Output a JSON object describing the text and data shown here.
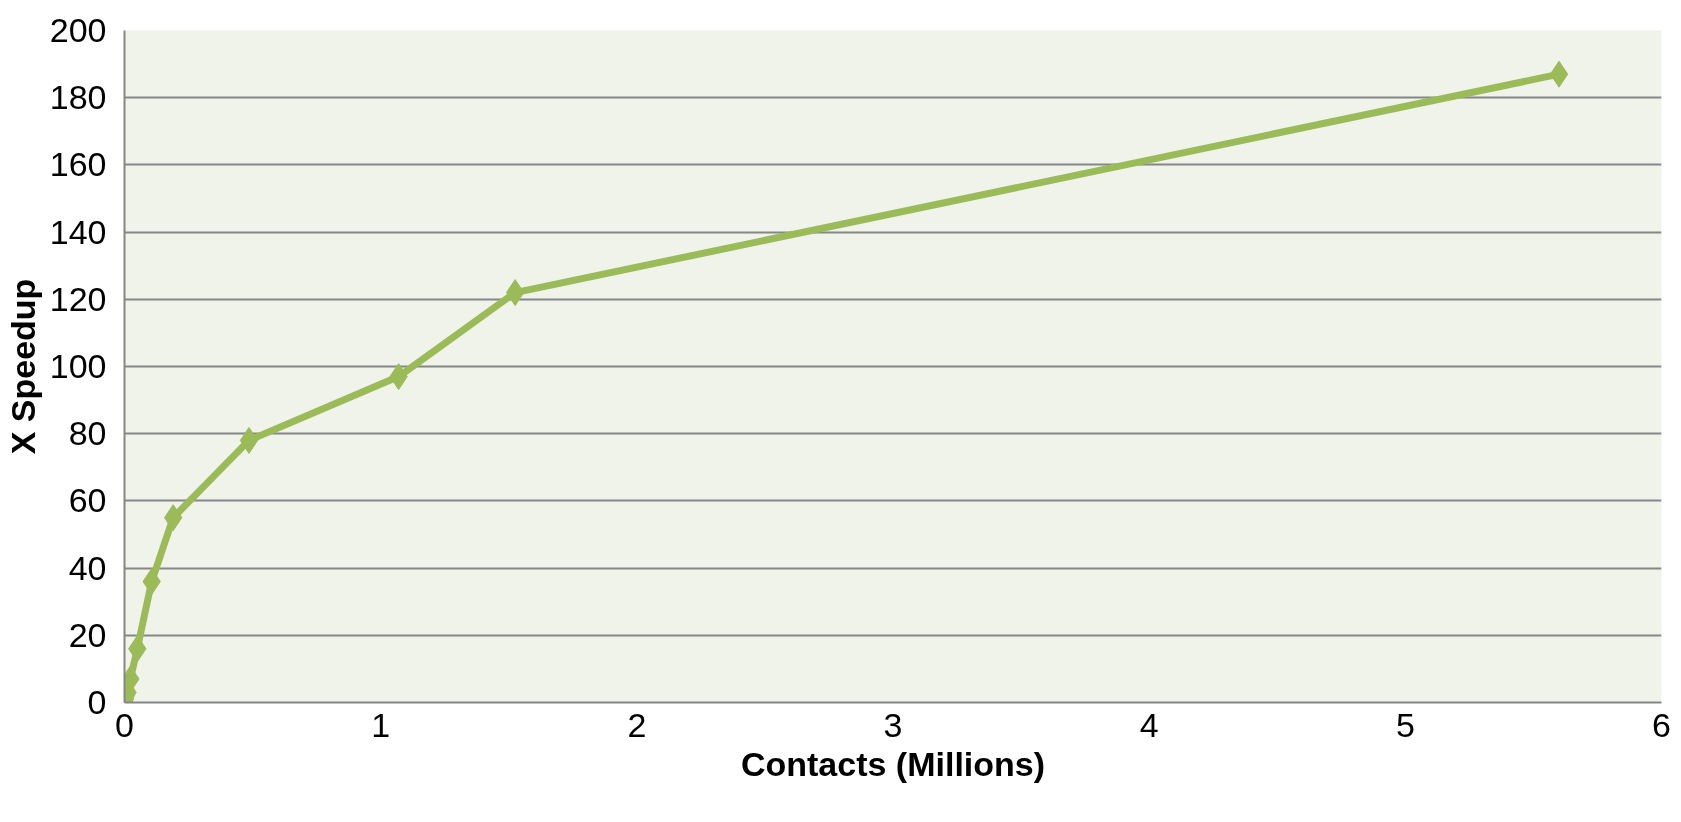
{
  "chart_data": {
    "type": "line",
    "xlabel": "Contacts (Millions)",
    "ylabel": "X Speedup",
    "x": [
      0,
      0.002,
      0.005,
      0.012,
      0.023,
      0.05,
      0.106,
      0.19,
      0.486,
      1.07,
      1.525,
      5.6
    ],
    "series": [
      {
        "color": "#9bbb59",
        "values": [
          0,
          1,
          2,
          3,
          7,
          16,
          36,
          55,
          78,
          97,
          122,
          187
        ]
      }
    ],
    "xlim": [
      0,
      6
    ],
    "xticks": [
      0,
      1,
      2,
      3,
      4,
      5,
      6
    ],
    "ylim": [
      0,
      200
    ],
    "yticks": [
      0,
      20,
      40,
      60,
      80,
      100,
      120,
      140,
      160,
      180,
      200
    ],
    "grid": "y",
    "marker": "diamond",
    "line_style": "solid"
  }
}
